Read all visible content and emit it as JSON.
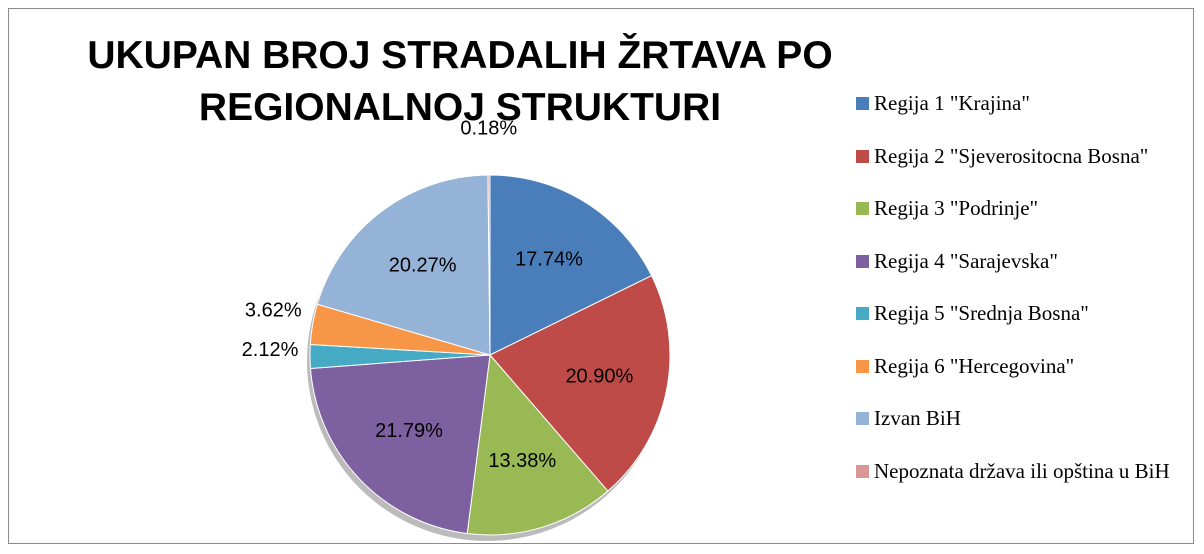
{
  "chart_data": {
    "type": "pie",
    "title": "UKUPAN BROJ STRADALIH ŽRTAVA PO REGIONALNOJ STRUKTURI",
    "categories": [
      "Regija 1 \"Krajina\"",
      "Regija 2 \"Sjeverositocna Bosna\"",
      "Regija 3 \"Podrinje\"",
      "Regija 4 \"Sarajevska\"",
      "Regija 5 \"Srednja Bosna\"",
      "Regija 6 \"Hercegovina\"",
      "Izvan BiH",
      "Nepoznata država ili opština u BiH"
    ],
    "values": [
      17.74,
      20.9,
      13.38,
      21.79,
      2.12,
      3.62,
      20.27,
      0.18
    ],
    "value_labels": [
      "17.74%",
      "20.90%",
      "13.38%",
      "21.79%",
      "2.12%",
      "3.62%",
      "20.27%",
      "0.18%"
    ],
    "colors": [
      "#4a7ebb",
      "#be4b48",
      "#98b954",
      "#7d60a0",
      "#46aac5",
      "#f79646",
      "#95b3d7",
      "#d99694"
    ],
    "legend": "right"
  }
}
